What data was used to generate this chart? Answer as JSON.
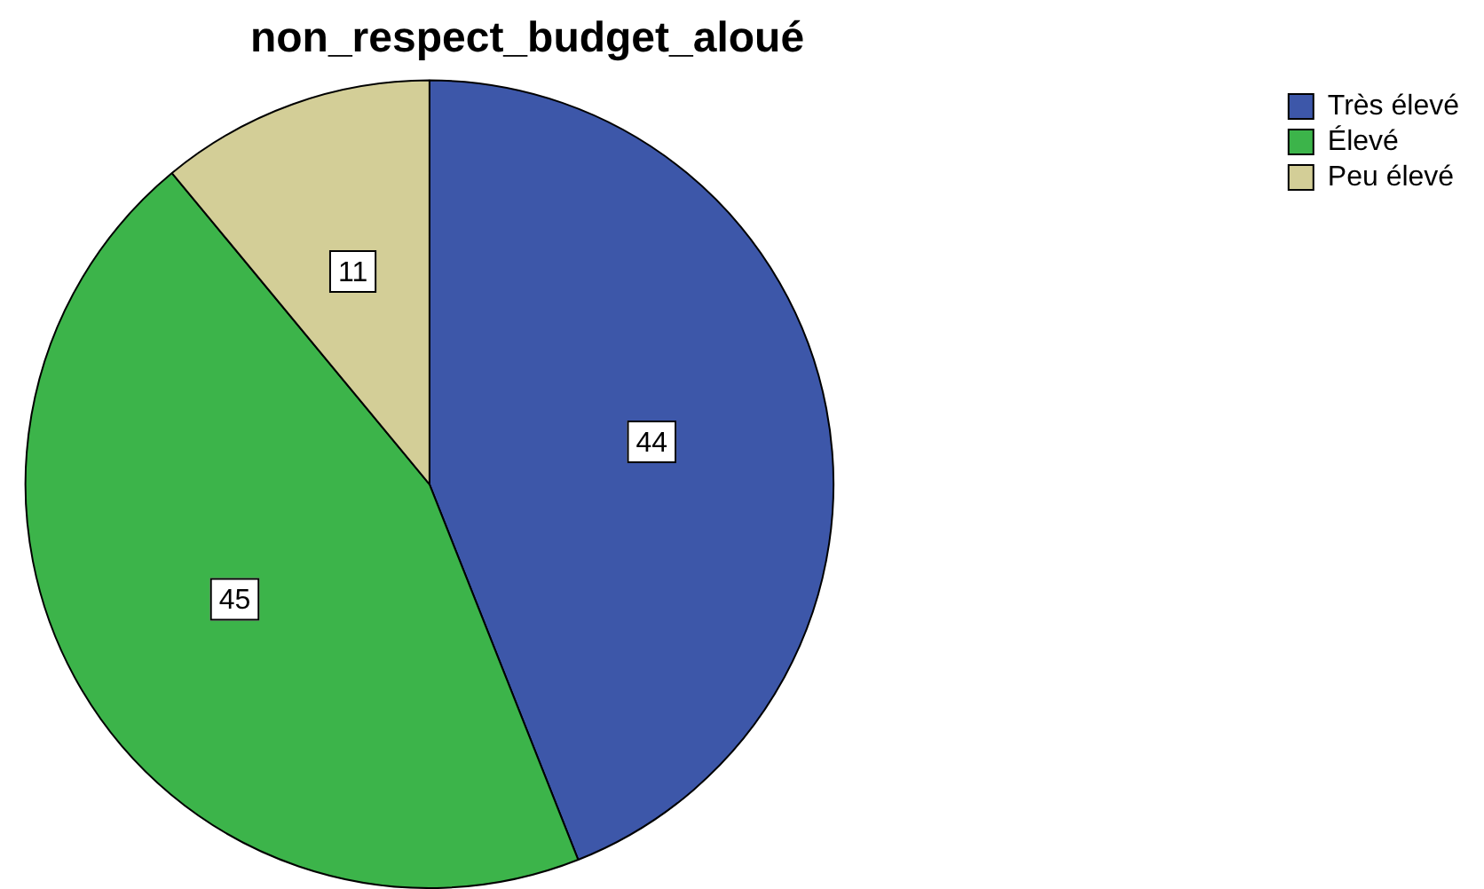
{
  "chart_data": {
    "type": "pie",
    "title": "non_respect_budget_aloué",
    "categories": [
      "Très élevé",
      "Élevé",
      "Peu élevé"
    ],
    "values": [
      44,
      45,
      11
    ],
    "colors": [
      "#3d57a9",
      "#3cb44a",
      "#d3ce97"
    ],
    "data_labels": true,
    "legend": "top right"
  }
}
